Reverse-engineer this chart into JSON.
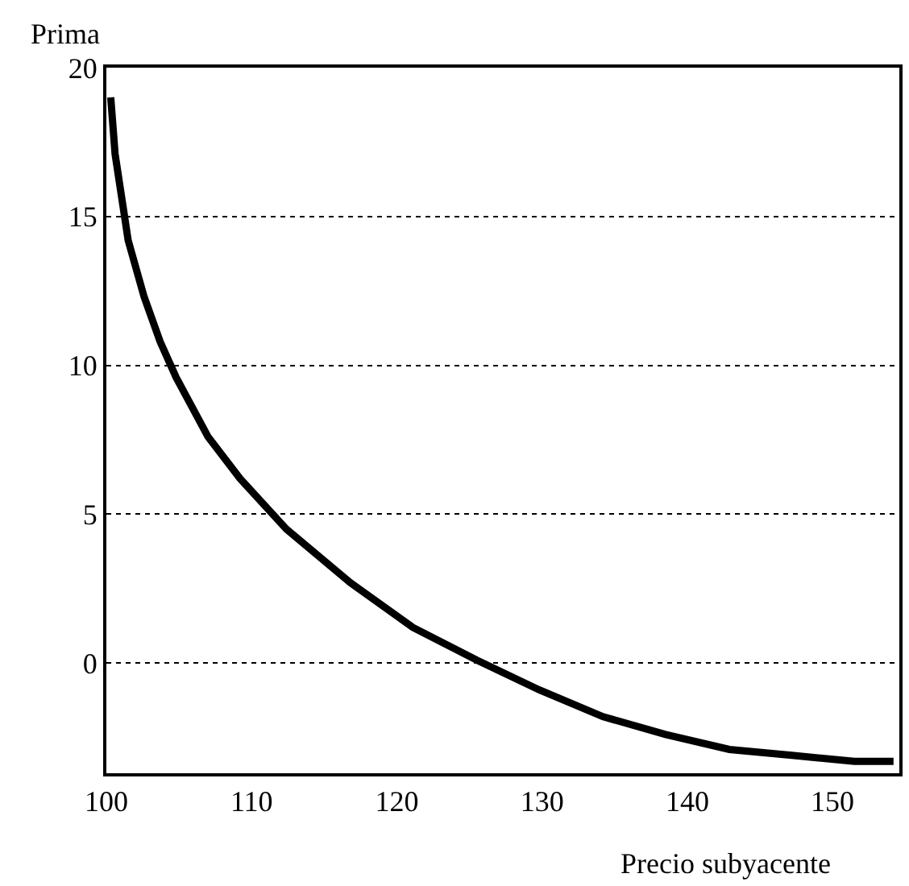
{
  "chart_data": {
    "type": "line",
    "xlabel": "Precio subyacente",
    "ylabel": "Prima",
    "x": [
      100.3,
      100.6,
      101.5,
      102.6,
      103.7,
      104.8,
      107.0,
      109.2,
      112.4,
      116.8,
      121.1,
      125.5,
      129.8,
      134.2,
      138.5,
      142.9,
      147.2,
      151.5,
      154.2
    ],
    "series": [
      {
        "color": "#000000",
        "values": [
          19.0,
          17.1,
          14.2,
          12.3,
          10.8,
          9.6,
          7.6,
          6.2,
          4.5,
          2.7,
          1.2,
          0.1,
          -0.9,
          -1.8,
          -2.4,
          -2.9,
          -3.1,
          -3.3,
          -3.3
        ]
      }
    ],
    "xlim": [
      100,
      154.6
    ],
    "xticks": [
      100,
      110,
      120,
      130,
      140,
      150
    ],
    "ylim": [
      -3.7,
      20
    ],
    "yticks": [
      0,
      5,
      10,
      15,
      20
    ],
    "grid": "y",
    "marker": "none",
    "line_style": "solid"
  }
}
